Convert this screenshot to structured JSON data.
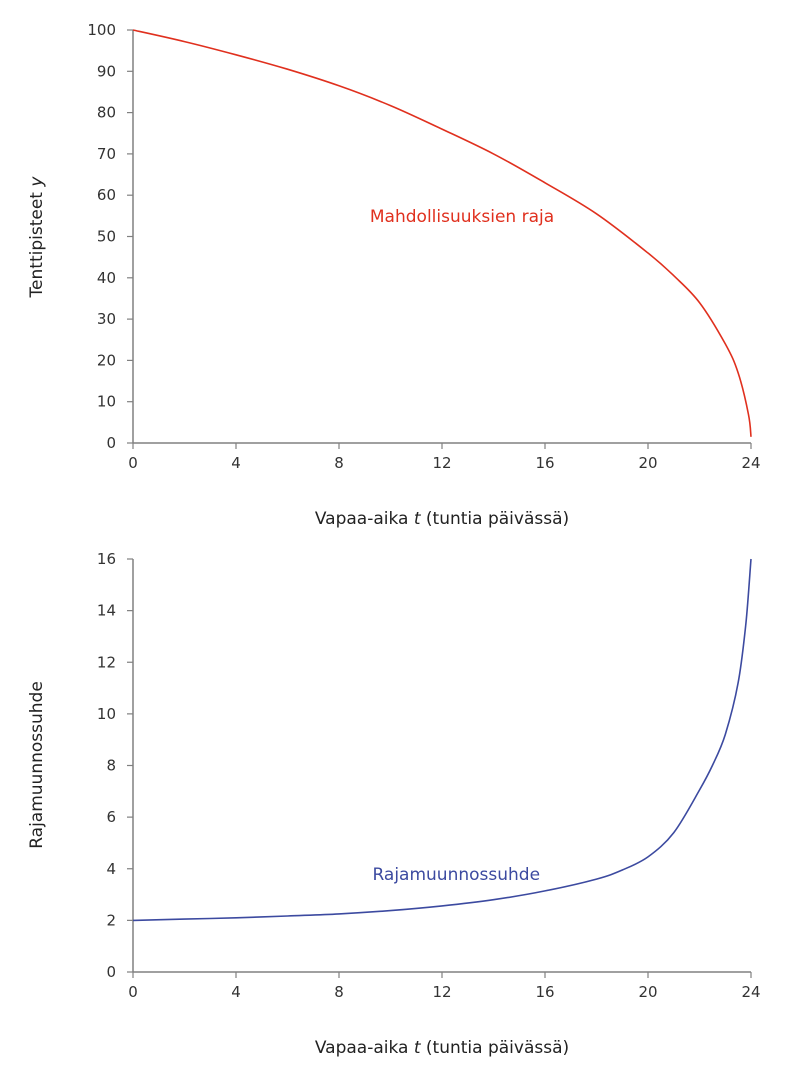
{
  "chart_data": [
    {
      "type": "line",
      "title": "",
      "xlabel": "Vapaa-aika t (tuntia päivässä)",
      "xlabel_parts": [
        "Vapaa-aika ",
        "t",
        " (tuntia päivässä)"
      ],
      "ylabel": "Tenttipisteet y",
      "ylabel_parts": [
        "Tenttipisteet ",
        "y"
      ],
      "xlim": [
        0,
        24
      ],
      "ylim": [
        0,
        100
      ],
      "xticks": [
        0,
        4,
        8,
        12,
        16,
        20,
        24
      ],
      "yticks": [
        0,
        10,
        20,
        30,
        40,
        50,
        60,
        70,
        80,
        90,
        100
      ],
      "grid": false,
      "legend": "none",
      "series": [
        {
          "name": "Mahdollisuuksien raja",
          "color": "#e0301e",
          "x": [
            0,
            2,
            4,
            6,
            8,
            10,
            12,
            14,
            16,
            18,
            20,
            21,
            22,
            23,
            23.5,
            23.9,
            24
          ],
          "y": [
            100,
            97.2,
            94,
            90.5,
            86.5,
            81.7,
            76,
            70,
            63,
            55.5,
            46,
            40.5,
            34,
            24,
            17,
            7,
            1.5
          ]
        }
      ],
      "annotations": [
        {
          "text": "Mahdollisuuksien raja",
          "x": 9.2,
          "y": 55,
          "color": "#e0301e"
        }
      ]
    },
    {
      "type": "line",
      "title": "",
      "xlabel": "Vapaa-aika t (tuntia päivässä)",
      "xlabel_parts": [
        "Vapaa-aika ",
        "t",
        " (tuntia päivässä)"
      ],
      "ylabel": "Rajamuunnossuhde",
      "xlim": [
        0,
        24
      ],
      "ylim": [
        0,
        16
      ],
      "xticks": [
        0,
        4,
        8,
        12,
        16,
        20,
        24
      ],
      "yticks": [
        0,
        2,
        4,
        6,
        8,
        10,
        12,
        14,
        16
      ],
      "grid": false,
      "legend": "none",
      "series": [
        {
          "name": "Rajamuunnossuhde",
          "color": "#3c4aa0",
          "x": [
            0,
            2,
            4,
            6,
            8,
            10,
            12,
            14,
            16,
            18,
            19,
            20,
            21,
            22,
            22.5,
            23,
            23.5,
            23.8,
            24
          ],
          "y": [
            2.0,
            2.05,
            2.1,
            2.17,
            2.25,
            2.38,
            2.56,
            2.8,
            3.14,
            3.6,
            3.95,
            4.46,
            5.4,
            7.05,
            8.0,
            9.2,
            11.2,
            13.5,
            16
          ]
        }
      ],
      "annotations": [
        {
          "text": "Rajamuunnossuhde",
          "x": 9.3,
          "y": 3.8,
          "color": "#3c4aa0"
        }
      ]
    }
  ]
}
